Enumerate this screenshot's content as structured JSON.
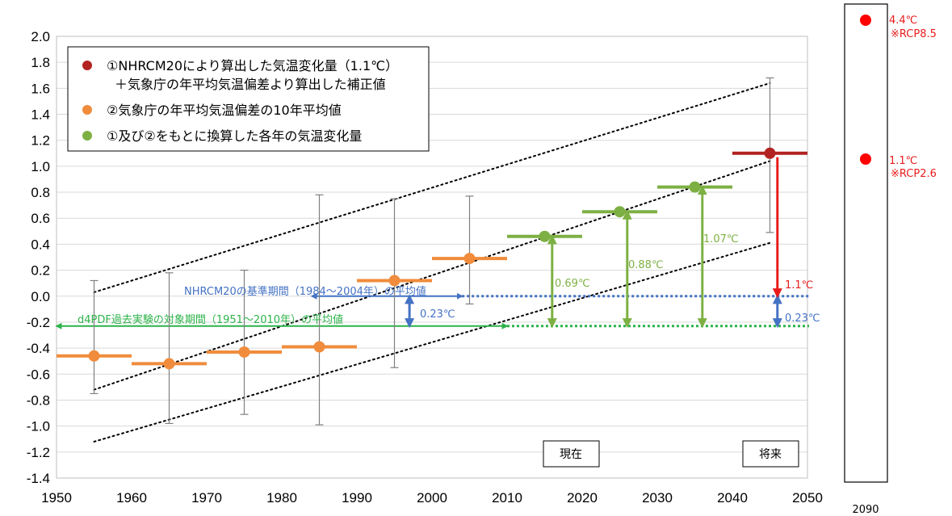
{
  "chart_data": {
    "type": "scatter",
    "xlim": [
      1950,
      2050
    ],
    "ylim": [
      -1.4,
      2.0
    ],
    "x_ticks": [
      "1950",
      "1960",
      "1970",
      "1980",
      "1990",
      "2000",
      "2010",
      "2020",
      "2030",
      "2040",
      "2050"
    ],
    "y_ticks": [
      "2.0",
      "1.8",
      "1.6",
      "1.4",
      "1.2",
      "1.0",
      "0.8",
      "0.6",
      "0.4",
      "0.2",
      "0.0",
      "-0.2",
      "-0.4",
      "-0.6",
      "-0.8",
      "-1.0",
      "-1.2",
      "-1.4"
    ],
    "grid": "horizontal",
    "legend": {
      "placement": "top-left",
      "entries": [
        {
          "text": "①NHRCM20により算出した気温変化量（1.1℃）",
          "color": "#b22222"
        },
        {
          "text": "＋気象庁の年平均気温偏差より算出した補正値",
          "color": null
        },
        {
          "text": "②気象庁の年平均気温偏差の10年平均値",
          "color": "#f08c3c"
        },
        {
          "text": "①及び②をもとに換算した各年の気温変化量",
          "color": "#7db043"
        }
      ]
    },
    "series": [
      {
        "color": "#f08c3c",
        "points": [
          {
            "x": 1955,
            "y": -0.46,
            "err_low": -0.75,
            "err_high": 0.12
          },
          {
            "x": 1965,
            "y": -0.52,
            "err_low": -0.98,
            "err_high": 0.18
          },
          {
            "x": 1975,
            "y": -0.43,
            "err_low": -0.91,
            "err_high": 0.2
          },
          {
            "x": 1985,
            "y": -0.39,
            "err_low": -0.99,
            "err_high": 0.78
          },
          {
            "x": 1995,
            "y": 0.12,
            "err_low": -0.55,
            "err_high": 0.75
          },
          {
            "x": 2005,
            "y": 0.29,
            "err_low": -0.06,
            "err_high": 0.77
          }
        ]
      },
      {
        "color": "#7db043",
        "points": [
          {
            "x": 2015,
            "y": 0.46
          },
          {
            "x": 2025,
            "y": 0.65
          },
          {
            "x": 2035,
            "y": 0.84
          }
        ]
      },
      {
        "color": "#b22222",
        "points": [
          {
            "x": 2045,
            "y": 1.1,
            "err_low": 0.49,
            "err_high": 1.68
          }
        ]
      }
    ],
    "trend_lines": [
      {
        "x0": 1955,
        "y0": 0.03,
        "x1": 2045,
        "y1": 1.64
      },
      {
        "x0": 1955,
        "y0": -0.72,
        "x1": 2045,
        "y1": 1.04
      },
      {
        "x0": 1955,
        "y0": -1.12,
        "x1": 2045,
        "y1": 0.41
      }
    ],
    "reference_lines": [
      {
        "y": 0.0,
        "x_from": 1984,
        "x_to": 2004,
        "dotted_from": 2004,
        "color": "#4472c4",
        "label": "NHRCM20の基準期間（1984～2004年）の平均値"
      },
      {
        "y": -0.23,
        "x_from": 1950,
        "x_to": 2010,
        "dotted_from": 2010,
        "color": "#2db34a",
        "label": "d4PDF過去実験の対象期間（1951～2010年）の平均値"
      }
    ],
    "arrows": [
      {
        "x": 1997,
        "y_from": 0.0,
        "y_to": -0.23,
        "color": "#4472c4",
        "label": "0.23℃"
      },
      {
        "x": 2046,
        "y_from": 0.0,
        "y_to": -0.23,
        "color": "#4472c4",
        "label": "0.23℃"
      },
      {
        "x": 2016,
        "y_from": -0.23,
        "y_to": 0.46,
        "color": "#7db043",
        "label": "0.69℃"
      },
      {
        "x": 2026,
        "y_from": -0.23,
        "y_to": 0.65,
        "color": "#7db043",
        "label": "0.88℃"
      },
      {
        "x": 2036,
        "y_from": -0.23,
        "y_to": 0.84,
        "color": "#7db043",
        "label": "1.07℃"
      },
      {
        "x": 2046,
        "y_from": 1.07,
        "y_to": 0.0,
        "color": "#e81c1c",
        "label": "1.1℃"
      }
    ],
    "boxes": [
      "現在",
      "将来"
    ],
    "side_panel": {
      "x_label": "2090",
      "points": [
        {
          "y": 4.4,
          "label": "4.4℃",
          "scenario": "※RCP8.5"
        },
        {
          "y": 1.1,
          "label": "1.1℃",
          "scenario": "※RCP2.6"
        }
      ]
    }
  }
}
